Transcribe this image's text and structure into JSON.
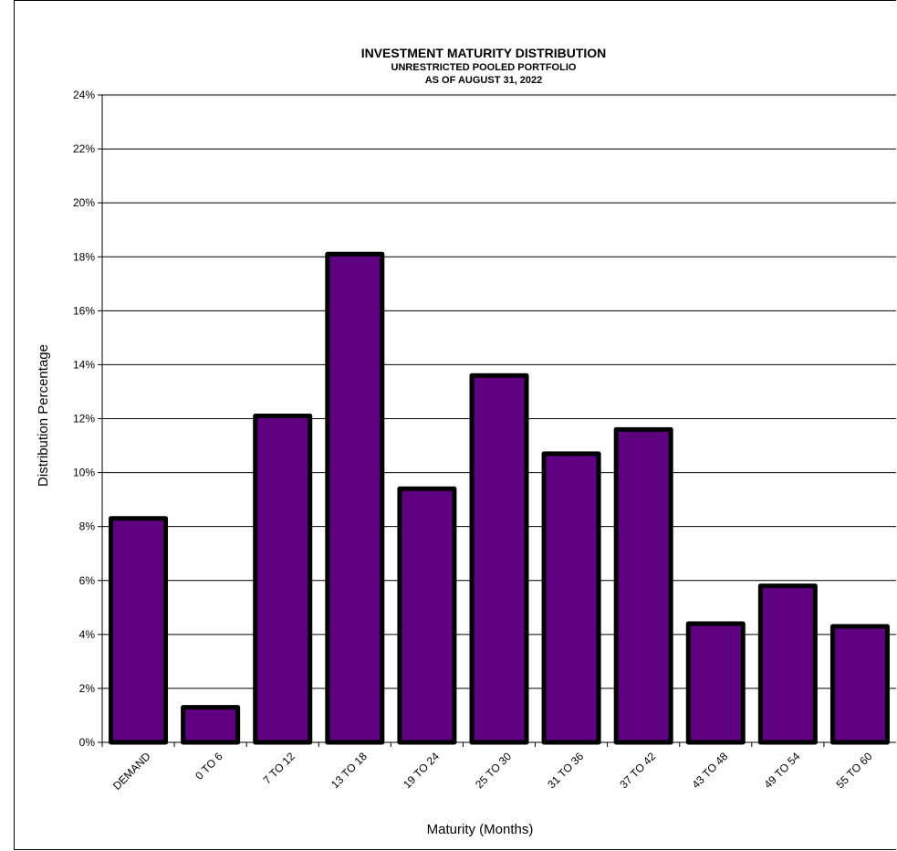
{
  "chart_data": {
    "type": "bar",
    "title": "INVESTMENT MATURITY DISTRIBUTION",
    "subtitle": [
      "UNRESTRICTED POOLED PORTFOLIO",
      "AS OF AUGUST 31, 2022"
    ],
    "xlabel": "Maturity (Months)",
    "ylabel": "Distribution Percentage",
    "categories": [
      "DEMAND",
      "0 TO 6",
      "7 TO 12",
      "13 TO 18",
      "19 TO 24",
      "25 TO 30",
      "31 TO 36",
      "37 TO 42",
      "43 TO 48",
      "49 TO 54",
      "55 TO 60"
    ],
    "values": [
      8.3,
      1.3,
      12.1,
      18.1,
      9.4,
      13.6,
      10.7,
      11.6,
      4.4,
      5.8,
      4.3
    ],
    "ylim": [
      0,
      24
    ],
    "yticks": [
      0,
      2,
      4,
      6,
      8,
      10,
      12,
      14,
      16,
      18,
      20,
      22,
      24
    ],
    "ytick_suffix": "%",
    "grid": true,
    "bar_color": "#5e0080",
    "bar_edge_color": "#000000"
  }
}
